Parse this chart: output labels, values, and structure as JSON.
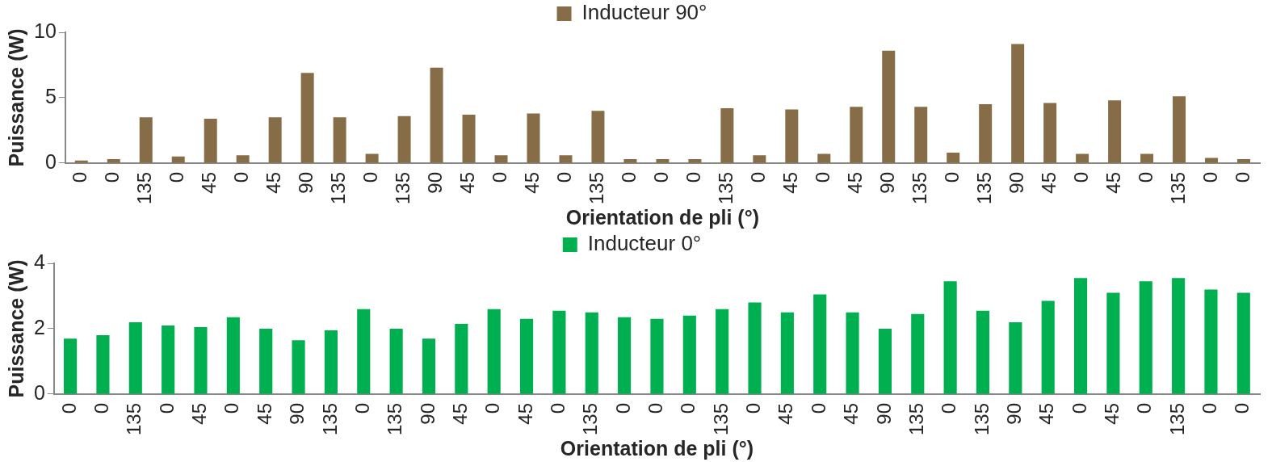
{
  "chart_data": [
    {
      "type": "bar",
      "xlabel": "Orientation de pli (°)",
      "ylabel": "Puissance (W)",
      "categories": [
        "0",
        "0",
        "135",
        "0",
        "45",
        "0",
        "45",
        "90",
        "135",
        "0",
        "135",
        "90",
        "45",
        "0",
        "45",
        "0",
        "135",
        "0",
        "0",
        "0",
        "135",
        "0",
        "45",
        "0",
        "45",
        "90",
        "135",
        "0",
        "135",
        "90",
        "45",
        "0",
        "45",
        "0",
        "135",
        "0",
        "0"
      ],
      "series": [
        {
          "name": "Inducteur 90°",
          "color": "#866c47",
          "values": [
            0.2,
            0.3,
            3.5,
            0.5,
            3.4,
            0.6,
            3.5,
            6.9,
            3.5,
            0.7,
            3.6,
            7.3,
            3.7,
            0.6,
            3.8,
            0.6,
            4.0,
            0.3,
            0.3,
            0.3,
            4.2,
            0.6,
            4.1,
            0.7,
            4.3,
            8.6,
            4.3,
            0.8,
            4.5,
            9.1,
            4.6,
            0.7,
            4.8,
            0.7,
            5.1,
            0.4,
            0.3
          ]
        }
      ],
      "ylim": [
        0,
        10
      ],
      "yticks": [
        0,
        5,
        10
      ],
      "grid": false,
      "legend": "top"
    },
    {
      "type": "bar",
      "xlabel": "Orientation de pli (°)",
      "ylabel": "Puissance (W)",
      "categories": [
        "0",
        "0",
        "135",
        "0",
        "45",
        "0",
        "45",
        "90",
        "135",
        "0",
        "135",
        "90",
        "45",
        "0",
        "45",
        "0",
        "135",
        "0",
        "0",
        "0",
        "135",
        "0",
        "45",
        "0",
        "45",
        "90",
        "135",
        "0",
        "135",
        "90",
        "45",
        "0",
        "45",
        "0",
        "135",
        "0",
        "0"
      ],
      "series": [
        {
          "name": "Inducteur 0°",
          "color": "#00b050",
          "values": [
            1.7,
            1.8,
            2.2,
            2.1,
            2.05,
            2.35,
            2.0,
            1.65,
            1.95,
            2.6,
            2.0,
            1.7,
            2.15,
            2.6,
            2.3,
            2.55,
            2.5,
            2.35,
            2.3,
            2.4,
            2.6,
            2.8,
            2.5,
            3.05,
            2.5,
            2.0,
            2.45,
            3.45,
            2.55,
            2.2,
            2.85,
            3.55,
            3.1,
            3.45,
            3.55,
            3.2,
            3.1
          ]
        }
      ],
      "ylim": [
        0,
        4
      ],
      "yticks": [
        0,
        2,
        4
      ],
      "grid": false,
      "legend": "top"
    }
  ]
}
